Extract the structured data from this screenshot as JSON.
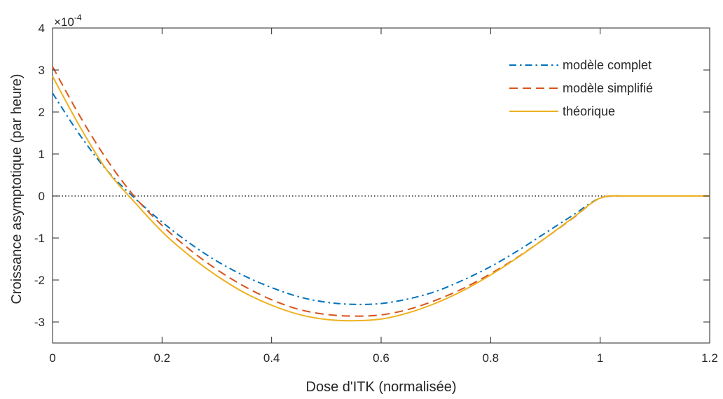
{
  "chart_data": {
    "type": "line",
    "title": "",
    "xlabel": "Dose d'ITK (normalisée)",
    "ylabel": "Croissance asymptotique (par heure)",
    "y_exponent_label": "×10",
    "y_exponent_power": "-4",
    "xlim": [
      0,
      1.2
    ],
    "ylim": [
      -3.5,
      4
    ],
    "xticks": [
      0,
      0.2,
      0.4,
      0.6,
      0.8,
      1,
      1.2
    ],
    "xtick_labels": [
      "0",
      "0.2",
      "0.4",
      "0.6",
      "0.8",
      "1",
      "1.2"
    ],
    "yticks": [
      -3,
      -2,
      -1,
      0,
      1,
      2,
      3,
      4
    ],
    "ytick_labels": [
      "-3",
      "-2",
      "-1",
      "0",
      "1",
      "2",
      "3",
      "4"
    ],
    "grid": false,
    "legend_position": "top-right",
    "zero_line": {
      "y": 0,
      "style": "dotted",
      "color": "#000000"
    },
    "series": [
      {
        "name": "modèle complet",
        "color": "#0072BD",
        "dash": "dashdot",
        "x": [
          0,
          0.05,
          0.1,
          0.15,
          0.2,
          0.25,
          0.3,
          0.35,
          0.4,
          0.45,
          0.5,
          0.55,
          0.6,
          0.65,
          0.7,
          0.75,
          0.8,
          0.85,
          0.9,
          0.95,
          1.0,
          1.05,
          1.1,
          1.15,
          1.2
        ],
        "y": [
          2.45,
          1.45,
          0.6,
          -0.05,
          -0.62,
          -1.12,
          -1.55,
          -1.9,
          -2.18,
          -2.4,
          -2.53,
          -2.58,
          -2.56,
          -2.45,
          -2.27,
          -2.0,
          -1.68,
          -1.3,
          -0.88,
          -0.46,
          -0.05,
          0,
          0,
          0,
          0
        ]
      },
      {
        "name": "modèle simplifié",
        "color": "#D95319",
        "dash": "dashed",
        "x": [
          0,
          0.05,
          0.1,
          0.15,
          0.2,
          0.25,
          0.3,
          0.35,
          0.4,
          0.45,
          0.5,
          0.55,
          0.6,
          0.65,
          0.7,
          0.75,
          0.8,
          0.85,
          0.9,
          0.95,
          1.0,
          1.05,
          1.1,
          1.15,
          1.2
        ],
        "y": [
          3.08,
          1.9,
          0.85,
          -0.02,
          -0.7,
          -1.27,
          -1.75,
          -2.15,
          -2.47,
          -2.7,
          -2.82,
          -2.86,
          -2.83,
          -2.7,
          -2.48,
          -2.2,
          -1.85,
          -1.45,
          -1.0,
          -0.53,
          -0.05,
          0,
          0,
          0,
          0
        ]
      },
      {
        "name": "théorique",
        "color": "#EDB120",
        "dash": "solid",
        "x": [
          0,
          0.05,
          0.1,
          0.15,
          0.2,
          0.25,
          0.3,
          0.35,
          0.4,
          0.45,
          0.5,
          0.55,
          0.6,
          0.65,
          0.7,
          0.75,
          0.8,
          0.85,
          0.9,
          0.95,
          1.0,
          1.05,
          1.1,
          1.15,
          1.2
        ],
        "y": [
          2.85,
          1.65,
          0.6,
          -0.15,
          -0.85,
          -1.42,
          -1.9,
          -2.3,
          -2.6,
          -2.82,
          -2.94,
          -2.97,
          -2.93,
          -2.78,
          -2.55,
          -2.25,
          -1.88,
          -1.46,
          -1.0,
          -0.52,
          -0.05,
          0,
          0,
          0,
          0
        ]
      }
    ]
  }
}
